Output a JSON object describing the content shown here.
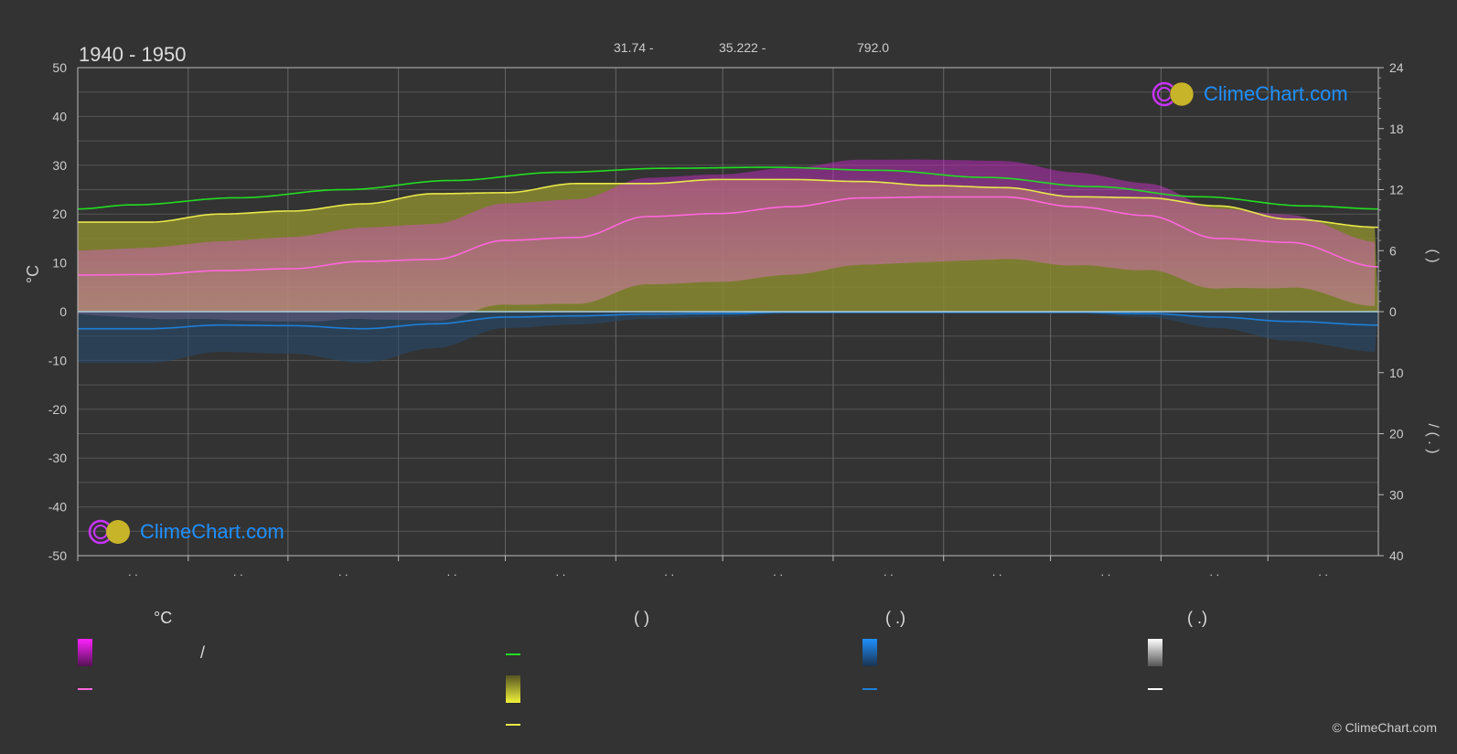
{
  "header": {
    "title": "1940 - 1950",
    "coord1": "31.74 -",
    "coord2": "35.222 -",
    "coord3": "792.0"
  },
  "logo_text": "ClimeChart.com",
  "copyright": "© ClimeChart.com",
  "axes": {
    "left_label": "°C",
    "right_label_top": "(   )",
    "right_label_bottom": "/   ( . )",
    "left_ticks": [
      "50",
      "40",
      "30",
      "20",
      "10",
      "0",
      "-10",
      "-20",
      "-30",
      "-40",
      "-50"
    ],
    "right_top_ticks": [
      "24",
      "18",
      "12",
      "6",
      "0"
    ],
    "right_bottom_ticks": [
      "10",
      "20",
      "30",
      "40"
    ],
    "month_labels": [
      ". .",
      ". .",
      ". .",
      ". .",
      ". .",
      ". .",
      ". .",
      ". .",
      ". .",
      ". .",
      ". .",
      ". ."
    ]
  },
  "legend": {
    "headers": [
      "°C",
      "(          )",
      "(    .)",
      "(    .)"
    ],
    "slash": "/"
  },
  "colors": {
    "background": "#333333",
    "daylight": "#22dd22",
    "sunshine": "#e8e84a",
    "max_temp": "#ff66dd",
    "temp_band": "#cc22cc",
    "rain": "#1e7fd8",
    "snow": "#ffffff"
  },
  "chart_data": {
    "type": "area",
    "xlim": [
      0,
      365
    ],
    "left_axis": {
      "unit": "°C",
      "ylim": [
        -50,
        50
      ]
    },
    "right_top_axis": {
      "unit": "h",
      "ylim": [
        0,
        24
      ]
    },
    "right_bottom_axis": {
      "unit": "mm",
      "ylim": [
        0,
        40
      ]
    },
    "series": [
      {
        "key": "daylight",
        "axis": "right",
        "x": [
          0,
          15,
          45,
          75,
          105,
          135,
          165,
          195,
          225,
          255,
          285,
          315,
          345,
          365
        ],
        "values": [
          10.1,
          10.5,
          11.2,
          12.0,
          12.9,
          13.7,
          14.1,
          14.2,
          13.9,
          13.2,
          12.3,
          11.3,
          10.4,
          10.1
        ]
      },
      {
        "key": "sunshine",
        "axis": "right",
        "x": [
          0,
          20,
          40,
          60,
          80,
          100,
          120,
          140,
          160,
          180,
          200,
          220,
          240,
          260,
          280,
          300,
          320,
          340,
          365
        ],
        "values": [
          8.8,
          8.8,
          9.6,
          9.9,
          10.6,
          11.6,
          11.7,
          12.6,
          12.6,
          13.0,
          13.0,
          12.8,
          12.4,
          12.2,
          11.3,
          11.2,
          10.4,
          9.1,
          8.3
        ]
      },
      {
        "key": "max_temp",
        "axis": "left",
        "x": [
          0,
          20,
          40,
          60,
          80,
          100,
          120,
          140,
          160,
          180,
          200,
          220,
          240,
          260,
          280,
          300,
          320,
          340,
          365
        ],
        "values": [
          7.5,
          7.6,
          8.4,
          8.8,
          10.3,
          10.7,
          14.6,
          15.2,
          19.5,
          20.1,
          21.5,
          23.3,
          23.5,
          23.5,
          21.5,
          19.7,
          15.0,
          14.2,
          9.2
        ]
      },
      {
        "key": "rain",
        "axis": "right_bottom",
        "x": [
          0,
          20,
          40,
          60,
          80,
          100,
          120,
          140,
          160,
          180,
          200,
          220,
          240,
          260,
          280,
          300,
          320,
          340,
          365
        ],
        "values": [
          2.8,
          2.8,
          2.2,
          2.3,
          2.8,
          2.0,
          0.9,
          0.7,
          0.4,
          0.3,
          0.1,
          0.1,
          0.1,
          0.1,
          0.1,
          0.3,
          0.9,
          1.6,
          2.2
        ]
      }
    ]
  }
}
